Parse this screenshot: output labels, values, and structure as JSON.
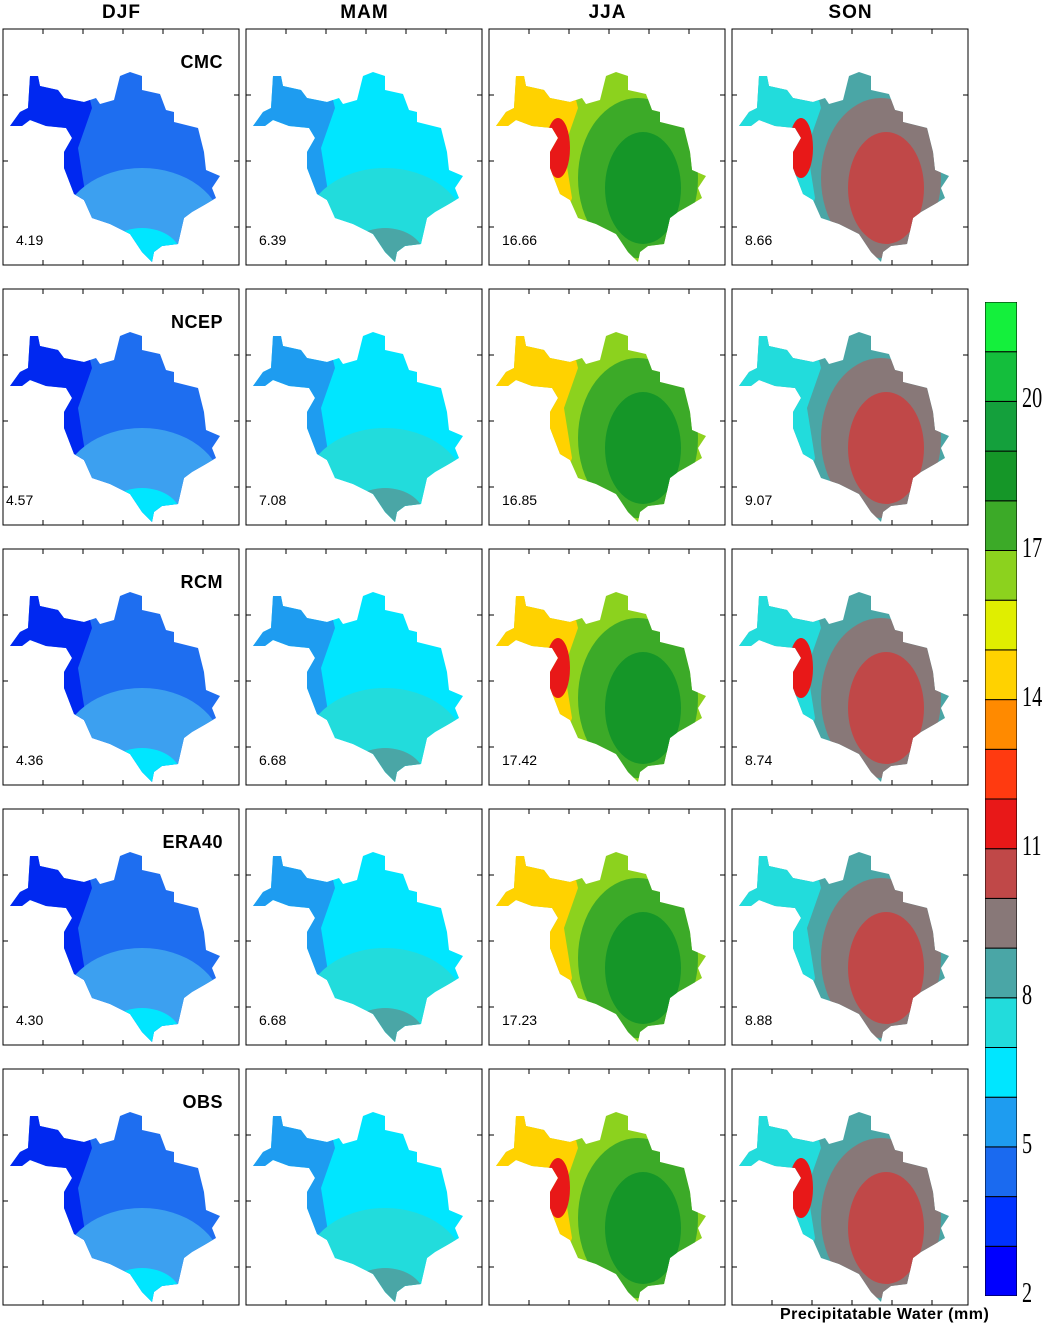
{
  "columns": [
    "DJF",
    "MAM",
    "JJA",
    "SON"
  ],
  "rows": [
    {
      "label": "CMC",
      "means": [
        "4.19",
        "6.39",
        "16.66",
        "8.66"
      ]
    },
    {
      "label": "NCEP",
      "means": [
        "4.57",
        "7.08",
        "16.85",
        "9.07"
      ]
    },
    {
      "label": "RCM",
      "means": [
        "4.36",
        "6.68",
        "17.42",
        "8.74"
      ]
    },
    {
      "label": "ERA40",
      "means": [
        "4.30",
        "6.68",
        "17.23",
        "8.88"
      ]
    },
    {
      "label": "OBS",
      "means": [
        "",
        "",
        "",
        ""
      ]
    }
  ],
  "colorbar": {
    "title": "Precipitatable Water (mm)",
    "tick_labels": [
      "2",
      "5",
      "8",
      "11",
      "14",
      "17",
      "20"
    ],
    "colors_bottom_to_top": [
      "#0000ff",
      "#0032ff",
      "#1a6af0",
      "#1e9cf0",
      "#00e6ff",
      "#22dcdc",
      "#4aa6a6",
      "#887878",
      "#c04848",
      "#e81818",
      "#ff3a10",
      "#ff8a00",
      "#ffd200",
      "#e0ee00",
      "#8cd21e",
      "#3caa28",
      "#159628",
      "#14a03c",
      "#14be3c",
      "#14f03c"
    ]
  },
  "panel_colors": {
    "DJF": {
      "outer": "#0028f0",
      "main": "#1e6ef0",
      "inner": "#3ca0f0",
      "core": "#00e6ff"
    },
    "MAM": {
      "outer": "#1e9cf0",
      "main": "#00e6ff",
      "inner": "#22dcdc",
      "core": "#4aa6a6"
    },
    "JJA": {
      "outer": "#ffd200",
      "main": "#8cd21e",
      "inner": "#3caa28",
      "core": "#159628",
      "hot": "#e81818"
    },
    "SON": {
      "outer": "#22dcdc",
      "main": "#4aa6a6",
      "inner": "#887878",
      "core": "#c04848",
      "hot": "#e81818"
    }
  }
}
